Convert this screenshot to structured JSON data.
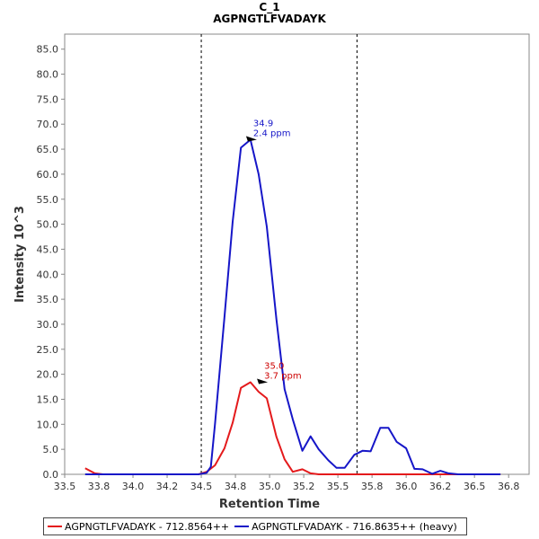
{
  "chart_data": {
    "type": "line",
    "title": "C_1",
    "subtitle": "AGPNGTLFVADAYK",
    "xlabel": "Retention Time",
    "ylabel": "Intensity 10^3",
    "xlim": [
      33.5,
      36.9
    ],
    "ylim": [
      0,
      88
    ],
    "x_ticks": [
      "33.5",
      "33.8",
      "34.0",
      "34.2",
      "34.5",
      "34.8",
      "35.0",
      "35.2",
      "35.5",
      "35.8",
      "36.0",
      "36.2",
      "36.5",
      "36.8"
    ],
    "x_tick_values": [
      33.5,
      33.75,
      34.0,
      34.25,
      34.5,
      34.75,
      35.0,
      35.25,
      35.5,
      35.75,
      36.0,
      36.25,
      36.5,
      36.75
    ],
    "y_ticks": [
      "0.0",
      "5.0",
      "10.0",
      "15.0",
      "20.0",
      "25.0",
      "30.0",
      "35.0",
      "40.0",
      "45.0",
      "50.0",
      "55.0",
      "60.0",
      "65.0",
      "70.0",
      "75.0",
      "80.0",
      "85.0"
    ],
    "y_tick_values": [
      0,
      5,
      10,
      15,
      20,
      25,
      30,
      35,
      40,
      45,
      50,
      55,
      60,
      65,
      70,
      75,
      80,
      85
    ],
    "vlines": [
      34.5,
      35.64
    ],
    "series": [
      {
        "name": "AGPNGTLFVADAYK - 712.8564++",
        "color": "#e41a1c",
        "x": [
          33.65,
          33.72,
          33.78,
          33.84,
          33.91,
          33.97,
          34.03,
          34.1,
          34.16,
          34.22,
          34.29,
          34.35,
          34.41,
          34.48,
          34.54,
          34.6,
          34.67,
          34.73,
          34.79,
          34.86,
          34.92,
          34.98,
          35.05,
          35.11,
          35.17,
          35.24,
          35.3,
          35.36,
          35.43,
          35.49,
          35.55,
          35.62,
          35.68,
          35.74,
          35.81,
          35.87,
          35.93,
          36.0,
          36.06,
          36.12,
          36.19,
          36.25,
          36.31,
          36.38,
          36.44,
          36.5,
          36.57,
          36.63,
          36.69
        ],
        "y": [
          1.2,
          0.2,
          0,
          0,
          0,
          0,
          0,
          0,
          0,
          0,
          0,
          0,
          0,
          0,
          0.5,
          1.8,
          5.2,
          10.3,
          17.3,
          18.4,
          16.5,
          15.2,
          7.5,
          3.0,
          0.5,
          1.0,
          0.2,
          0,
          0,
          0,
          0,
          0,
          0,
          0,
          0,
          0,
          0,
          0,
          0,
          0,
          0,
          0,
          0,
          0,
          0,
          0,
          0,
          0,
          0
        ]
      },
      {
        "name": "AGPNGTLFVADAYK - 716.8635++ (heavy)",
        "color": "#1616c8",
        "x": [
          33.65,
          33.72,
          33.78,
          33.84,
          33.91,
          33.97,
          34.03,
          34.1,
          34.16,
          34.22,
          34.29,
          34.35,
          34.41,
          34.48,
          34.54,
          34.57,
          34.6,
          34.67,
          34.73,
          34.79,
          34.86,
          34.92,
          34.98,
          35.05,
          35.11,
          35.17,
          35.24,
          35.3,
          35.36,
          35.43,
          35.49,
          35.55,
          35.62,
          35.68,
          35.74,
          35.81,
          35.87,
          35.93,
          36.0,
          36.06,
          36.12,
          36.19,
          36.25,
          36.31,
          36.38,
          36.44,
          36.5,
          36.57,
          36.63,
          36.69
        ],
        "y": [
          0,
          0,
          0,
          0,
          0,
          0,
          0,
          0,
          0,
          0,
          0,
          0,
          0,
          0,
          0.3,
          1.5,
          10.0,
          31.5,
          50.5,
          65.3,
          66.9,
          60.0,
          49.5,
          31.0,
          17.0,
          11.0,
          4.7,
          7.6,
          5.0,
          2.8,
          1.3,
          1.3,
          3.9,
          4.7,
          4.6,
          9.3,
          9.3,
          6.5,
          5.2,
          1.1,
          1.0,
          0.1,
          0.7,
          0.2,
          0,
          0,
          0,
          0,
          0,
          0
        ]
      }
    ],
    "annotations": [
      {
        "x": 34.92,
        "y": 66.9,
        "line1": "34.9",
        "line2": "2.4 ppm",
        "color": "#1616c8"
      },
      {
        "x": 35.0,
        "y": 18.4,
        "line1": "35.0",
        "line2": "3.7 ppm",
        "color": "#cc0000"
      }
    ]
  }
}
